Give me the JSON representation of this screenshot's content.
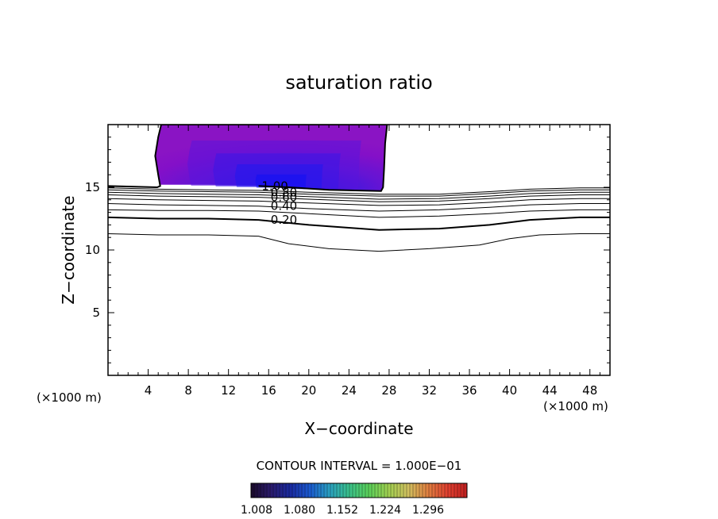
{
  "chart_data": {
    "type": "contour",
    "title": "saturation ratio",
    "xlabel": "X−coordinate",
    "ylabel": "Z−coordinate",
    "x_unit_left": "(×1000 m)",
    "x_unit_right": "(×1000 m)",
    "xlim": [
      0,
      50
    ],
    "ylim": [
      0,
      20
    ],
    "xticks": [
      "4",
      "8",
      "12",
      "16",
      "20",
      "24",
      "28",
      "32",
      "36",
      "40",
      "44",
      "48"
    ],
    "yticks": [
      "5",
      "10",
      "15"
    ],
    "contour_interval_text": "CONTOUR INTERVAL = 1.000E−01",
    "contour_lines": [
      {
        "level": 0.1,
        "label": "",
        "thick": false,
        "points": [
          [
            0,
            11.3
          ],
          [
            5,
            11.2
          ],
          [
            10,
            11.2
          ],
          [
            15,
            11.1
          ],
          [
            18,
            10.5
          ],
          [
            22,
            10.1
          ],
          [
            27,
            9.9
          ],
          [
            32,
            10.1
          ],
          [
            37,
            10.4
          ],
          [
            40,
            10.9
          ],
          [
            43,
            11.2
          ],
          [
            47,
            11.3
          ],
          [
            50,
            11.3
          ]
        ]
      },
      {
        "level": 0.2,
        "label": "0.20",
        "thick": true,
        "points": [
          [
            0,
            12.6
          ],
          [
            5,
            12.5
          ],
          [
            10,
            12.5
          ],
          [
            15,
            12.4
          ],
          [
            20,
            12.0
          ],
          [
            27,
            11.6
          ],
          [
            33,
            11.7
          ],
          [
            38,
            12.0
          ],
          [
            42,
            12.4
          ],
          [
            47,
            12.6
          ],
          [
            50,
            12.6
          ]
        ]
      },
      {
        "level": 0.3,
        "label": "",
        "thick": false,
        "points": [
          [
            0,
            13.2
          ],
          [
            5,
            13.15
          ],
          [
            10,
            13.15
          ],
          [
            15,
            13.1
          ],
          [
            20,
            12.9
          ],
          [
            27,
            12.6
          ],
          [
            33,
            12.7
          ],
          [
            38,
            12.9
          ],
          [
            42,
            13.1
          ],
          [
            47,
            13.2
          ],
          [
            50,
            13.2
          ]
        ]
      },
      {
        "level": 0.4,
        "label": "0.40",
        "thick": false,
        "points": [
          [
            0,
            13.7
          ],
          [
            5,
            13.6
          ],
          [
            10,
            13.55
          ],
          [
            15,
            13.5
          ],
          [
            20,
            13.3
          ],
          [
            27,
            13.1
          ],
          [
            33,
            13.2
          ],
          [
            38,
            13.4
          ],
          [
            42,
            13.6
          ],
          [
            47,
            13.7
          ],
          [
            50,
            13.7
          ]
        ]
      },
      {
        "level": 0.5,
        "label": "",
        "thick": false,
        "points": [
          [
            0,
            14.1
          ],
          [
            5,
            14.0
          ],
          [
            10,
            13.95
          ],
          [
            15,
            13.9
          ],
          [
            20,
            13.75
          ],
          [
            27,
            13.55
          ],
          [
            33,
            13.6
          ],
          [
            38,
            13.8
          ],
          [
            42,
            14.0
          ],
          [
            47,
            14.1
          ],
          [
            50,
            14.1
          ]
        ]
      },
      {
        "level": 0.6,
        "label": "0.60",
        "thick": false,
        "points": [
          [
            0,
            14.4
          ],
          [
            5,
            14.3
          ],
          [
            10,
            14.25
          ],
          [
            15,
            14.2
          ],
          [
            20,
            14.05
          ],
          [
            27,
            13.85
          ],
          [
            33,
            13.9
          ],
          [
            38,
            14.1
          ],
          [
            42,
            14.3
          ],
          [
            47,
            14.4
          ],
          [
            50,
            14.4
          ]
        ]
      },
      {
        "level": 0.7,
        "label": "",
        "thick": false,
        "points": [
          [
            0,
            14.6
          ],
          [
            5,
            14.5
          ],
          [
            10,
            14.45
          ],
          [
            15,
            14.4
          ],
          [
            20,
            14.25
          ],
          [
            27,
            14.05
          ],
          [
            33,
            14.1
          ],
          [
            38,
            14.3
          ],
          [
            42,
            14.5
          ],
          [
            47,
            14.6
          ],
          [
            50,
            14.6
          ]
        ]
      },
      {
        "level": 0.8,
        "label": "0.80",
        "thick": false,
        "points": [
          [
            0,
            14.8
          ],
          [
            5,
            14.7
          ],
          [
            10,
            14.65
          ],
          [
            15,
            14.6
          ],
          [
            20,
            14.45
          ],
          [
            27,
            14.3
          ],
          [
            33,
            14.3
          ],
          [
            38,
            14.5
          ],
          [
            42,
            14.7
          ],
          [
            47,
            14.8
          ],
          [
            50,
            14.8
          ]
        ]
      },
      {
        "level": 0.9,
        "label": "",
        "thick": false,
        "points": [
          [
            0,
            14.95
          ],
          [
            5,
            14.85
          ],
          [
            10,
            14.8
          ],
          [
            15,
            14.75
          ],
          [
            20,
            14.6
          ],
          [
            27,
            14.45
          ],
          [
            33,
            14.45
          ],
          [
            38,
            14.65
          ],
          [
            42,
            14.85
          ],
          [
            47,
            14.95
          ],
          [
            50,
            14.95
          ]
        ]
      },
      {
        "level": 1.0,
        "label": "1.00",
        "thick": true,
        "points": [
          [
            0,
            15.1
          ],
          [
            4.9,
            15.0
          ],
          [
            5.2,
            15.1
          ],
          [
            5,
            16.0
          ],
          [
            4.7,
            17.5
          ],
          [
            5,
            19.0
          ],
          [
            5.3,
            20
          ],
          [
            27.8,
            20
          ],
          [
            27.6,
            18.5
          ],
          [
            27.5,
            16.5
          ],
          [
            27.4,
            15.0
          ],
          [
            27.2,
            14.7
          ],
          [
            22,
            14.8
          ],
          [
            18,
            15.0
          ],
          [
            15,
            15.1
          ]
        ]
      }
    ],
    "contour_labels": [
      {
        "text": "1.00",
        "x": 15.3,
        "y": 15.1
      },
      {
        "text": "0.80",
        "x": 16.2,
        "y": 14.6
      },
      {
        "text": "0.60",
        "x": 16.2,
        "y": 14.2
      },
      {
        "text": "0.40",
        "x": 16.2,
        "y": 13.5
      },
      {
        "text": "0.20",
        "x": 16.2,
        "y": 12.4
      }
    ],
    "shaded_region": {
      "levels": [
        1.008,
        1.08,
        1.152,
        1.224,
        1.296
      ],
      "boundary": [
        [
          5.2,
          15.2
        ],
        [
          5.0,
          16.0
        ],
        [
          4.7,
          17.5
        ],
        [
          5.0,
          19.0
        ],
        [
          5.3,
          20
        ],
        [
          27.8,
          20
        ],
        [
          27.6,
          18.5
        ],
        [
          27.5,
          16.5
        ],
        [
          27.4,
          15.0
        ],
        [
          27.2,
          14.7
        ],
        [
          22,
          14.8
        ],
        [
          18,
          15.0
        ],
        [
          15,
          15.15
        ],
        [
          10,
          15.2
        ]
      ],
      "core_color": "#1a1aff",
      "outer_color": "#8a10cc"
    },
    "colorbar": {
      "tick_labels": [
        "1.008",
        "1.080",
        "1.152",
        "1.224",
        "1.296"
      ],
      "colors": [
        "#1a0a2a",
        "#2a1a6a",
        "#1a2aa0",
        "#1a5ad0",
        "#2aa0c0",
        "#3ac08a",
        "#5ad05a",
        "#a0d050",
        "#d0c060",
        "#e08040",
        "#e04030",
        "#c02020"
      ]
    }
  }
}
